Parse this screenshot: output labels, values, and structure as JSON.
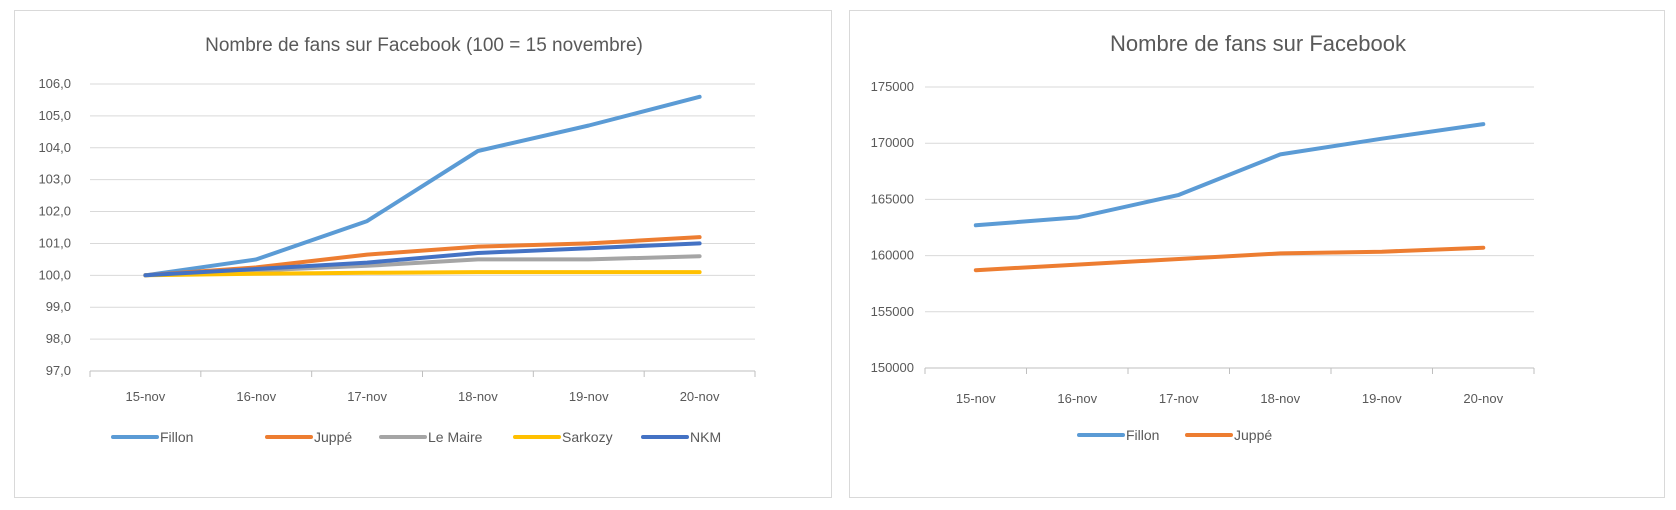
{
  "chart_data": [
    {
      "type": "line",
      "title": "Nombre de fans sur Facebook (100 = 15 novembre)",
      "xlabel": "",
      "ylabel": "",
      "categories": [
        "15-nov",
        "16-nov",
        "17-nov",
        "18-nov",
        "19-nov",
        "20-nov"
      ],
      "ylim": [
        97,
        106
      ],
      "yticks": [
        "97,0",
        "98,0",
        "99,0",
        "100,0",
        "101,0",
        "102,0",
        "103,0",
        "104,0",
        "105,0",
        "106,0"
      ],
      "grid": true,
      "legend_position": "bottom",
      "series": [
        {
          "name": "Fillon",
          "color": "#5b9bd5",
          "values": [
            100.0,
            100.5,
            101.7,
            103.9,
            104.7,
            105.6
          ]
        },
        {
          "name": "Juppé",
          "color": "#ed7d31",
          "values": [
            100.0,
            100.25,
            100.65,
            100.9,
            101.0,
            101.2
          ]
        },
        {
          "name": "Le Maire",
          "color": "#a5a5a5",
          "values": [
            100.0,
            100.15,
            100.3,
            100.5,
            100.5,
            100.6
          ]
        },
        {
          "name": "Sarkozy",
          "color": "#ffc000",
          "values": [
            100.0,
            100.05,
            100.08,
            100.1,
            100.1,
            100.1
          ]
        },
        {
          "name": "NKM",
          "color": "#4472c4",
          "values": [
            100.0,
            100.2,
            100.4,
            100.7,
            100.85,
            101.0
          ]
        }
      ]
    },
    {
      "type": "line",
      "title": "Nombre de fans sur Facebook",
      "xlabel": "",
      "ylabel": "",
      "categories": [
        "15-nov",
        "16-nov",
        "17-nov",
        "18-nov",
        "19-nov",
        "20-nov"
      ],
      "ylim": [
        150000,
        175000
      ],
      "yticks": [
        "150000",
        "155000",
        "160000",
        "165000",
        "170000",
        "175000"
      ],
      "grid": true,
      "legend_position": "bottom",
      "series": [
        {
          "name": "Fillon",
          "color": "#5b9bd5",
          "values": [
            162700,
            163400,
            165400,
            169000,
            170400,
            171700
          ]
        },
        {
          "name": "Juppé",
          "color": "#ed7d31",
          "values": [
            158700,
            159200,
            159700,
            160200,
            160350,
            160700
          ]
        }
      ]
    }
  ]
}
